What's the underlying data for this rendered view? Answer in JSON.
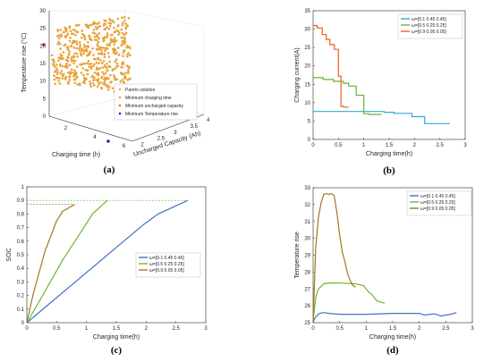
{
  "chart_data": [
    {
      "type": "scatter",
      "panel_label": "(a)",
      "xlabel": "Charging time (h)",
      "ylabel": "Temperature rise (°C)",
      "zlabel": "Uncharged Capacity (Ah)",
      "x_ticks": [
        "2",
        "4",
        "6"
      ],
      "y_ticks": [
        "2",
        "2.5",
        "3",
        "3.5",
        "4"
      ],
      "z_ticks": [
        "0",
        "5",
        "10",
        "15",
        "20",
        "25",
        "30"
      ],
      "legend": [
        "Pareto solution",
        "Minimum charging time",
        "Minimum uncharged capacity",
        "Minimum Temperature rise"
      ],
      "colors": [
        "#e8a33a",
        "#e8a33a",
        "#c8801e",
        "#1a2bbf"
      ]
    },
    {
      "type": "line",
      "panel_label": "(b)",
      "xlabel": "Charging time(h)",
      "ylabel": "Charging current(A)",
      "xlim": [
        0,
        3
      ],
      "ylim": [
        0,
        35
      ],
      "x_ticks": [
        "0",
        "0.5",
        "1",
        "1.5",
        "2",
        "2.5",
        "3"
      ],
      "y_ticks": [
        "0",
        "5",
        "10",
        "15",
        "20",
        "25",
        "30",
        "35"
      ],
      "series": [
        {
          "name": "ω=[0.1 0.45 0.45]",
          "color": "#33a8d9",
          "x": [
            0,
            1.4,
            1.4,
            1.6,
            1.6,
            1.95,
            1.95,
            2.2,
            2.2,
            2.7
          ],
          "y": [
            7.6,
            7.6,
            7.4,
            7.4,
            7.1,
            7.1,
            6.2,
            6.2,
            4.3,
            4.3
          ]
        },
        {
          "name": "ω=[0.5 0.25 0.25]",
          "color": "#5fb82e",
          "x": [
            0,
            0.2,
            0.2,
            0.4,
            0.4,
            0.6,
            0.6,
            0.7,
            0.7,
            0.85,
            0.85,
            1.0,
            1.0,
            1.1,
            1.1,
            1.35
          ],
          "y": [
            16.8,
            16.8,
            16.3,
            16.3,
            15.8,
            15.8,
            15.3,
            15.3,
            14.5,
            14.5,
            12.0,
            12.0,
            7.0,
            7.0,
            6.8,
            6.8
          ]
        },
        {
          "name": "ω=[0.9 0.05 0.05]",
          "color": "#f05a28",
          "x": [
            0,
            0.08,
            0.08,
            0.18,
            0.18,
            0.26,
            0.26,
            0.33,
            0.33,
            0.42,
            0.42,
            0.5,
            0.5,
            0.55,
            0.55,
            0.6,
            0.6,
            0.7
          ],
          "y": [
            31.0,
            31.0,
            30.3,
            30.3,
            28.5,
            28.5,
            27.2,
            27.2,
            25.8,
            25.8,
            24.5,
            24.5,
            17.2,
            17.2,
            9.0,
            9.0,
            8.8,
            8.8
          ]
        }
      ]
    },
    {
      "type": "line",
      "panel_label": "(c)",
      "xlabel": "Charging time(h)",
      "ylabel": "SOC",
      "xlim": [
        0,
        3
      ],
      "ylim": [
        0,
        1
      ],
      "x_ticks": [
        "0",
        "0.5",
        "1",
        "1.5",
        "2",
        "2.5",
        "3"
      ],
      "y_ticks": [
        "0",
        "0.1",
        "0.2",
        "0.3",
        "0.4",
        "0.5",
        "0.6",
        "0.7",
        "0.8",
        "0.9",
        "1"
      ],
      "reference_lines": [
        0.9,
        0.87
      ],
      "series": [
        {
          "name": "ω=[0.1 0.45 0.45]",
          "color": "#4472c4",
          "x": [
            0,
            1.95,
            2.2,
            2.7
          ],
          "y": [
            0,
            0.72,
            0.8,
            0.9
          ]
        },
        {
          "name": "ω=[0.5 0.25 0.25]",
          "color": "#70b62c",
          "x": [
            0,
            0.2,
            0.6,
            1.0,
            1.1,
            1.35
          ],
          "y": [
            0,
            0.15,
            0.46,
            0.73,
            0.8,
            0.9
          ]
        },
        {
          "name": "ω=[0.9 0.05 0.05]",
          "color": "#9c7a1c",
          "x": [
            0,
            0.1,
            0.3,
            0.5,
            0.6,
            0.8
          ],
          "y": [
            0,
            0.2,
            0.52,
            0.75,
            0.82,
            0.87
          ]
        }
      ]
    },
    {
      "type": "line",
      "panel_label": "(d)",
      "xlabel": "Charging time(h)",
      "ylabel": "Temperature rise",
      "xlim": [
        0,
        3
      ],
      "ylim": [
        25,
        33
      ],
      "x_ticks": [
        "0",
        "0.5",
        "1",
        "1.5",
        "2",
        "2.5",
        "3"
      ],
      "y_ticks": [
        "25",
        "26",
        "27",
        "28",
        "29",
        "30",
        "31",
        "32",
        "33"
      ],
      "series": [
        {
          "name": "ω=[0.1 0.45 0.45]",
          "color": "#4472c4",
          "x": [
            0,
            0.05,
            0.12,
            0.2,
            0.3,
            0.5,
            1.0,
            1.5,
            2.0,
            2.1,
            2.2,
            2.3,
            2.4,
            2.5,
            2.6,
            2.7
          ],
          "y": [
            25.05,
            25.35,
            25.55,
            25.6,
            25.55,
            25.5,
            25.5,
            25.55,
            25.55,
            25.45,
            25.5,
            25.52,
            25.4,
            25.45,
            25.5,
            25.6
          ]
        },
        {
          "name": "ω=[0.5 0.25 0.25]",
          "color": "#70b62c",
          "x": [
            0,
            0.05,
            0.1,
            0.2,
            0.3,
            0.5,
            0.8,
            0.95,
            1.05,
            1.1,
            1.2,
            1.3,
            1.35
          ],
          "y": [
            25.1,
            26.5,
            27.0,
            27.3,
            27.35,
            27.35,
            27.3,
            27.2,
            26.8,
            26.7,
            26.3,
            26.2,
            26.15
          ]
        },
        {
          "name": "ω=[0.9 0.05 0.05]",
          "color": "#9c7a1c",
          "x": [
            0,
            0.05,
            0.1,
            0.15,
            0.2,
            0.25,
            0.3,
            0.35,
            0.4,
            0.45,
            0.5,
            0.55,
            0.6,
            0.65,
            0.7,
            0.75,
            0.8
          ],
          "y": [
            25.1,
            29.5,
            31.2,
            32.1,
            32.6,
            32.65,
            32.6,
            32.65,
            32.5,
            31.5,
            30.2,
            29.2,
            28.6,
            27.9,
            27.5,
            27.2,
            27.1
          ]
        }
      ]
    }
  ]
}
